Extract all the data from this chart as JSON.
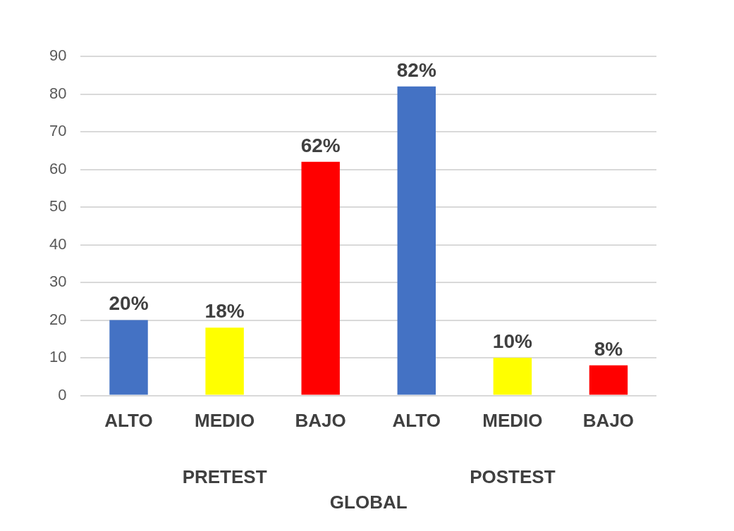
{
  "chart_data": {
    "type": "bar",
    "xlabel": "GLOBAL",
    "categories": [
      "ALTO",
      "MEDIO",
      "BAJO",
      "ALTO",
      "MEDIO",
      "BAJO"
    ],
    "values": [
      20,
      18,
      62,
      82,
      10,
      8
    ],
    "colors": [
      "#4472c4",
      "#ffff00",
      "#ff0000",
      "#4472c4",
      "#ffff00",
      "#ff0000"
    ],
    "value_labels": [
      "20%",
      "18%",
      "62%",
      "82%",
      "10%",
      "8%"
    ],
    "annotations": [
      "PRETEST",
      "POSTEST"
    ],
    "ylim": [
      0,
      90
    ],
    "yticks": [
      0,
      10,
      20,
      30,
      40,
      50,
      60,
      70,
      80,
      90
    ],
    "grid": "y",
    "legend": false
  }
}
